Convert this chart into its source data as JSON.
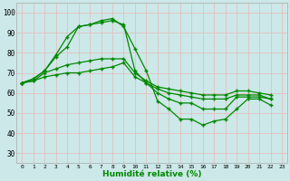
{
  "xlabel": "Humidité relative (%)",
  "background_color": "#cce8e8",
  "grid_color": "#e8b8b8",
  "line_color": "#008800",
  "xlim": [
    -0.5,
    23.5
  ],
  "ylim": [
    25,
    105
  ],
  "yticks": [
    30,
    40,
    50,
    60,
    70,
    80,
    90,
    100
  ],
  "xticks": [
    0,
    1,
    2,
    3,
    4,
    5,
    6,
    7,
    8,
    9,
    10,
    11,
    12,
    13,
    14,
    15,
    16,
    17,
    18,
    19,
    20,
    21,
    22,
    23
  ],
  "s1": [
    65,
    67,
    71,
    79,
    88,
    93,
    94,
    96,
    97,
    93,
    82,
    71,
    56,
    52,
    47,
    47,
    44,
    46,
    47,
    52,
    57,
    57,
    54
  ],
  "s2": [
    65,
    67,
    71,
    78,
    83,
    93,
    94,
    95,
    96,
    94,
    71,
    65,
    60,
    57,
    55,
    55,
    52,
    52,
    52,
    58,
    58,
    58,
    57
  ],
  "s3": [
    65,
    66,
    70,
    72,
    74,
    75,
    76,
    77,
    77,
    77,
    70,
    66,
    63,
    62,
    61,
    60,
    59,
    59,
    59,
    61,
    61,
    60,
    59
  ],
  "s4": [
    65,
    66,
    68,
    69,
    70,
    70,
    71,
    72,
    73,
    75,
    68,
    65,
    62,
    60,
    59,
    58,
    57,
    57,
    57,
    59,
    59,
    59,
    57
  ]
}
